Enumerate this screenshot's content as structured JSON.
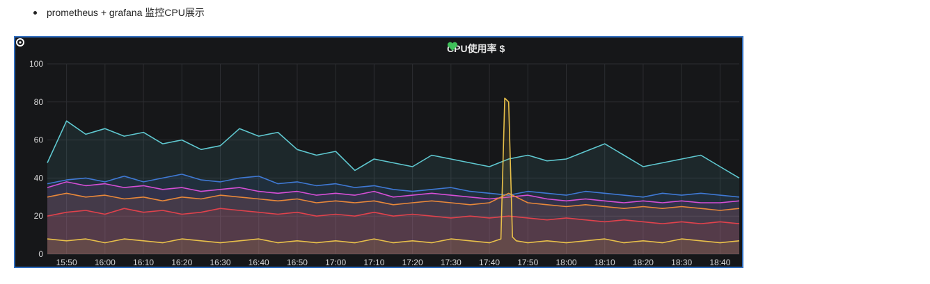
{
  "bullet": {
    "text": "prometheus + grafana 监控CPU展示"
  },
  "panel": {
    "title": "CPU使用率 $",
    "title_icon": "heart-icon",
    "border_color": "#2f6dbf",
    "background": "#161719"
  },
  "chart_data": {
    "type": "area",
    "title": "CPU使用率 $",
    "xlabel": "",
    "ylabel": "",
    "ylim": [
      0,
      100
    ],
    "yticks": [
      0,
      20,
      40,
      60,
      80,
      100
    ],
    "xlim": [
      "15:45",
      "18:45"
    ],
    "xticks": [
      "15:50",
      "16:00",
      "16:10",
      "16:20",
      "16:30",
      "16:40",
      "16:50",
      "17:00",
      "17:10",
      "17:20",
      "17:30",
      "17:40",
      "17:50",
      "18:00",
      "18:10",
      "18:20",
      "18:30",
      "18:40"
    ],
    "grid": true,
    "legend": "none",
    "series": [
      {
        "color": "#5fc8d0",
        "x": [
          "15:45",
          "15:50",
          "15:55",
          "16:00",
          "16:05",
          "16:10",
          "16:15",
          "16:20",
          "16:25",
          "16:30",
          "16:35",
          "16:40",
          "16:45",
          "16:50",
          "16:55",
          "17:00",
          "17:05",
          "17:10",
          "17:15",
          "17:20",
          "17:25",
          "17:30",
          "17:35",
          "17:40",
          "17:45",
          "17:50",
          "17:55",
          "18:00",
          "18:05",
          "18:10",
          "18:15",
          "18:20",
          "18:25",
          "18:30",
          "18:35",
          "18:40",
          "18:45"
        ],
        "values": [
          48,
          70,
          63,
          66,
          62,
          64,
          58,
          60,
          55,
          57,
          66,
          62,
          64,
          55,
          52,
          54,
          44,
          50,
          48,
          46,
          52,
          50,
          48,
          46,
          50,
          52,
          49,
          50,
          54,
          58,
          52,
          46,
          48,
          50,
          52,
          46,
          40
        ]
      },
      {
        "color": "#3f79d4",
        "x": [
          "15:45",
          "15:50",
          "15:55",
          "16:00",
          "16:05",
          "16:10",
          "16:15",
          "16:20",
          "16:25",
          "16:30",
          "16:35",
          "16:40",
          "16:45",
          "16:50",
          "16:55",
          "17:00",
          "17:05",
          "17:10",
          "17:15",
          "17:20",
          "17:25",
          "17:30",
          "17:35",
          "17:40",
          "17:45",
          "17:50",
          "17:55",
          "18:00",
          "18:05",
          "18:10",
          "18:15",
          "18:20",
          "18:25",
          "18:30",
          "18:35",
          "18:40",
          "18:45"
        ],
        "values": [
          37,
          39,
          40,
          38,
          41,
          38,
          40,
          42,
          39,
          38,
          40,
          41,
          37,
          38,
          36,
          37,
          35,
          36,
          34,
          33,
          34,
          35,
          33,
          32,
          31,
          33,
          32,
          31,
          33,
          32,
          31,
          30,
          32,
          31,
          32,
          31,
          30
        ]
      },
      {
        "color": "#d64fd6",
        "x": [
          "15:45",
          "15:50",
          "15:55",
          "16:00",
          "16:05",
          "16:10",
          "16:15",
          "16:20",
          "16:25",
          "16:30",
          "16:35",
          "16:40",
          "16:45",
          "16:50",
          "16:55",
          "17:00",
          "17:05",
          "17:10",
          "17:15",
          "17:20",
          "17:25",
          "17:30",
          "17:35",
          "17:40",
          "17:45",
          "17:50",
          "17:55",
          "18:00",
          "18:05",
          "18:10",
          "18:15",
          "18:20",
          "18:25",
          "18:30",
          "18:35",
          "18:40",
          "18:45"
        ],
        "values": [
          35,
          38,
          36,
          37,
          35,
          36,
          34,
          35,
          33,
          34,
          35,
          33,
          32,
          33,
          31,
          32,
          31,
          33,
          30,
          31,
          32,
          31,
          30,
          29,
          30,
          31,
          29,
          28,
          29,
          28,
          27,
          28,
          27,
          28,
          27,
          27,
          28
        ]
      },
      {
        "color": "#e8883a",
        "x": [
          "15:45",
          "15:50",
          "15:55",
          "16:00",
          "16:05",
          "16:10",
          "16:15",
          "16:20",
          "16:25",
          "16:30",
          "16:35",
          "16:40",
          "16:45",
          "16:50",
          "16:55",
          "17:00",
          "17:05",
          "17:10",
          "17:15",
          "17:20",
          "17:25",
          "17:30",
          "17:35",
          "17:40",
          "17:45",
          "17:50",
          "17:55",
          "18:00",
          "18:05",
          "18:10",
          "18:15",
          "18:20",
          "18:25",
          "18:30",
          "18:35",
          "18:40",
          "18:45"
        ],
        "values": [
          30,
          32,
          30,
          31,
          29,
          30,
          28,
          30,
          29,
          31,
          30,
          29,
          28,
          29,
          27,
          28,
          27,
          28,
          26,
          27,
          28,
          27,
          26,
          27,
          32,
          27,
          26,
          25,
          26,
          25,
          24,
          25,
          24,
          25,
          24,
          23,
          24
        ]
      },
      {
        "color": "#e0424c",
        "x": [
          "15:45",
          "15:50",
          "15:55",
          "16:00",
          "16:05",
          "16:10",
          "16:15",
          "16:20",
          "16:25",
          "16:30",
          "16:35",
          "16:40",
          "16:45",
          "16:50",
          "16:55",
          "17:00",
          "17:05",
          "17:10",
          "17:15",
          "17:20",
          "17:25",
          "17:30",
          "17:35",
          "17:40",
          "17:45",
          "17:50",
          "17:55",
          "18:00",
          "18:05",
          "18:10",
          "18:15",
          "18:20",
          "18:25",
          "18:30",
          "18:35",
          "18:40",
          "18:45"
        ],
        "values": [
          20,
          22,
          23,
          21,
          24,
          22,
          23,
          21,
          22,
          24,
          23,
          22,
          21,
          22,
          20,
          21,
          20,
          22,
          20,
          21,
          20,
          19,
          20,
          19,
          20,
          19,
          18,
          19,
          18,
          17,
          18,
          17,
          16,
          17,
          16,
          17,
          16
        ]
      },
      {
        "color": "#e8c04a",
        "x": [
          "15:45",
          "15:50",
          "15:55",
          "16:00",
          "16:05",
          "16:10",
          "16:15",
          "16:20",
          "16:25",
          "16:30",
          "16:35",
          "16:40",
          "16:45",
          "16:50",
          "16:55",
          "17:00",
          "17:05",
          "17:10",
          "17:15",
          "17:20",
          "17:25",
          "17:30",
          "17:35",
          "17:40",
          "17:43",
          "17:44",
          "17:45",
          "17:46",
          "17:47",
          "17:50",
          "17:55",
          "18:00",
          "18:05",
          "18:10",
          "18:15",
          "18:20",
          "18:25",
          "18:30",
          "18:35",
          "18:40",
          "18:45"
        ],
        "values": [
          8,
          7,
          8,
          6,
          8,
          7,
          6,
          8,
          7,
          6,
          7,
          8,
          6,
          7,
          6,
          7,
          6,
          8,
          6,
          7,
          6,
          8,
          7,
          6,
          8,
          82,
          80,
          9,
          7,
          6,
          7,
          6,
          7,
          8,
          6,
          7,
          6,
          8,
          7,
          6,
          7
        ]
      }
    ]
  }
}
